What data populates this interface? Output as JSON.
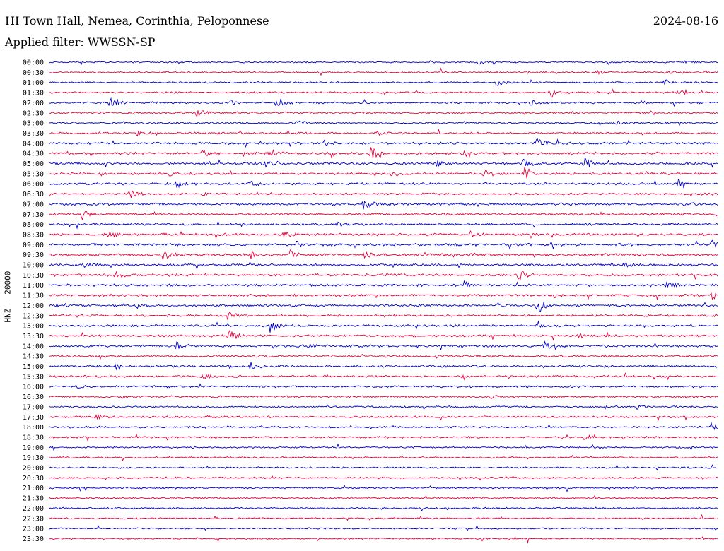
{
  "header": {
    "station": "HI Town Hall, Nemea, Corinthia, Peloponnese",
    "date": "2024-08-16",
    "filter": "Applied filter: WWSSN-SP"
  },
  "chart_data": {
    "type": "line",
    "title": "HI Town Hall, Nemea, Corinthia, Peloponnese",
    "ylabel": "HNZ - 20000",
    "colors": [
      "#0000cc",
      "#e8003c"
    ],
    "rows": [
      "00:00",
      "00:30",
      "01:00",
      "01:30",
      "02:00",
      "02:30",
      "03:00",
      "03:30",
      "04:00",
      "04:30",
      "05:00",
      "05:30",
      "06:00",
      "06:30",
      "07:00",
      "07:30",
      "08:00",
      "08:30",
      "09:00",
      "09:30",
      "10:00",
      "10:30",
      "11:00",
      "11:30",
      "12:00",
      "12:30",
      "13:00",
      "13:30",
      "14:00",
      "14:30",
      "15:00",
      "15:30",
      "16:00",
      "16:30",
      "17:00",
      "17:30",
      "18:00",
      "18:30",
      "19:00",
      "19:30",
      "20:00",
      "20:30",
      "21:00",
      "21:30",
      "22:00",
      "22:30",
      "23:00",
      "23:30"
    ],
    "noise_level": [
      0.8,
      0.9,
      0.9,
      1.0,
      1.1,
      1.1,
      1.0,
      1.1,
      1.2,
      1.3,
      1.3,
      1.2,
      1.2,
      1.1,
      1.3,
      1.2,
      1.2,
      1.3,
      1.4,
      1.4,
      1.3,
      1.3,
      1.3,
      1.2,
      1.2,
      1.1,
      1.2,
      1.2,
      1.3,
      1.2,
      1.2,
      1.1,
      1.1,
      1.1,
      1.0,
      1.1,
      1.0,
      1.0,
      0.9,
      0.9,
      0.9,
      0.9,
      0.9,
      0.9,
      0.9,
      0.8,
      0.8,
      0.8
    ],
    "events": [
      {
        "row": 0,
        "t": 0.64,
        "amp": 3
      },
      {
        "row": 0,
        "t": 0.95,
        "amp": 2
      },
      {
        "row": 1,
        "t": 0.92,
        "amp": 3
      },
      {
        "row": 1,
        "t": 0.82,
        "amp": 2
      },
      {
        "row": 2,
        "t": 0.67,
        "amp": 8
      },
      {
        "row": 2,
        "t": 0.92,
        "amp": 4
      },
      {
        "row": 3,
        "t": 0.75,
        "amp": 9
      },
      {
        "row": 3,
        "t": 0.94,
        "amp": 4
      },
      {
        "row": 4,
        "t": 0.09,
        "amp": 7
      },
      {
        "row": 4,
        "t": 0.34,
        "amp": 12
      },
      {
        "row": 4,
        "t": 0.27,
        "amp": 4
      },
      {
        "row": 4,
        "t": 0.72,
        "amp": 4
      },
      {
        "row": 5,
        "t": 0.22,
        "amp": 6
      },
      {
        "row": 5,
        "t": 0.9,
        "amp": 3
      },
      {
        "row": 6,
        "t": 0.37,
        "amp": 4
      },
      {
        "row": 6,
        "t": 0.85,
        "amp": 3
      },
      {
        "row": 7,
        "t": 0.13,
        "amp": 5
      },
      {
        "row": 7,
        "t": 0.49,
        "amp": 3
      },
      {
        "row": 8,
        "t": 0.41,
        "amp": 4
      },
      {
        "row": 8,
        "t": 0.73,
        "amp": 8
      },
      {
        "row": 9,
        "t": 0.23,
        "amp": 6
      },
      {
        "row": 9,
        "t": 0.33,
        "amp": 7
      },
      {
        "row": 9,
        "t": 0.48,
        "amp": 11
      },
      {
        "row": 9,
        "t": 0.62,
        "amp": 4
      },
      {
        "row": 10,
        "t": 0.32,
        "amp": 5
      },
      {
        "row": 10,
        "t": 0.58,
        "amp": 4
      },
      {
        "row": 10,
        "t": 0.71,
        "amp": 7
      },
      {
        "row": 10,
        "t": 0.8,
        "amp": 9
      },
      {
        "row": 11,
        "t": 0.18,
        "amp": 5
      },
      {
        "row": 11,
        "t": 0.65,
        "amp": 10
      },
      {
        "row": 11,
        "t": 0.71,
        "amp": 9
      },
      {
        "row": 11,
        "t": 0.51,
        "amp": 4
      },
      {
        "row": 12,
        "t": 0.19,
        "amp": 6
      },
      {
        "row": 12,
        "t": 0.3,
        "amp": 4
      },
      {
        "row": 12,
        "t": 0.94,
        "amp": 6
      },
      {
        "row": 13,
        "t": 0.12,
        "amp": 6
      },
      {
        "row": 13,
        "t": 0.23,
        "amp": 5
      },
      {
        "row": 14,
        "t": 0.47,
        "amp": 9
      },
      {
        "row": 14,
        "t": 0.95,
        "amp": 3
      },
      {
        "row": 15,
        "t": 0.05,
        "amp": 8
      },
      {
        "row": 16,
        "t": 0.43,
        "amp": 4
      },
      {
        "row": 17,
        "t": 0.09,
        "amp": 5
      },
      {
        "row": 17,
        "t": 0.35,
        "amp": 4
      },
      {
        "row": 17,
        "t": 0.63,
        "amp": 6
      },
      {
        "row": 18,
        "t": 0.37,
        "amp": 6
      },
      {
        "row": 18,
        "t": 0.99,
        "amp": 9
      },
      {
        "row": 19,
        "t": 0.17,
        "amp": 9
      },
      {
        "row": 19,
        "t": 0.3,
        "amp": 6
      },
      {
        "row": 19,
        "t": 0.36,
        "amp": 6
      },
      {
        "row": 19,
        "t": 0.47,
        "amp": 5
      },
      {
        "row": 20,
        "t": 0.05,
        "amp": 5
      },
      {
        "row": 20,
        "t": 0.86,
        "amp": 3
      },
      {
        "row": 21,
        "t": 0.1,
        "amp": 4
      },
      {
        "row": 21,
        "t": 0.7,
        "amp": 10
      },
      {
        "row": 22,
        "t": 0.62,
        "amp": 6
      },
      {
        "row": 22,
        "t": 0.92,
        "amp": 8
      },
      {
        "row": 23,
        "t": 0.99,
        "amp": 6
      },
      {
        "row": 24,
        "t": 0.01,
        "amp": 6
      },
      {
        "row": 24,
        "t": 0.13,
        "amp": 4
      },
      {
        "row": 24,
        "t": 0.73,
        "amp": 14
      },
      {
        "row": 24,
        "t": 0.67,
        "amp": 4
      },
      {
        "row": 25,
        "t": 0.27,
        "amp": 5
      },
      {
        "row": 26,
        "t": 0.33,
        "amp": 11
      },
      {
        "row": 26,
        "t": 0.73,
        "amp": 5
      },
      {
        "row": 27,
        "t": 0.27,
        "amp": 9
      },
      {
        "row": 27,
        "t": 0.79,
        "amp": 4
      },
      {
        "row": 28,
        "t": 0.19,
        "amp": 5
      },
      {
        "row": 28,
        "t": 0.38,
        "amp": 4
      },
      {
        "row": 28,
        "t": 0.74,
        "amp": 6
      },
      {
        "row": 30,
        "t": 0.1,
        "amp": 5
      },
      {
        "row": 30,
        "t": 0.3,
        "amp": 6
      },
      {
        "row": 31,
        "t": 0.23,
        "amp": 4
      },
      {
        "row": 32,
        "t": 0.04,
        "amp": 3
      },
      {
        "row": 33,
        "t": 0.66,
        "amp": 3
      },
      {
        "row": 34,
        "t": 0.88,
        "amp": 4
      },
      {
        "row": 35,
        "t": 0.07,
        "amp": 4
      },
      {
        "row": 36,
        "t": 0.99,
        "amp": 7
      },
      {
        "row": 37,
        "t": 0.8,
        "amp": 4
      },
      {
        "row": 43,
        "t": 0.63,
        "amp": 2
      }
    ]
  }
}
